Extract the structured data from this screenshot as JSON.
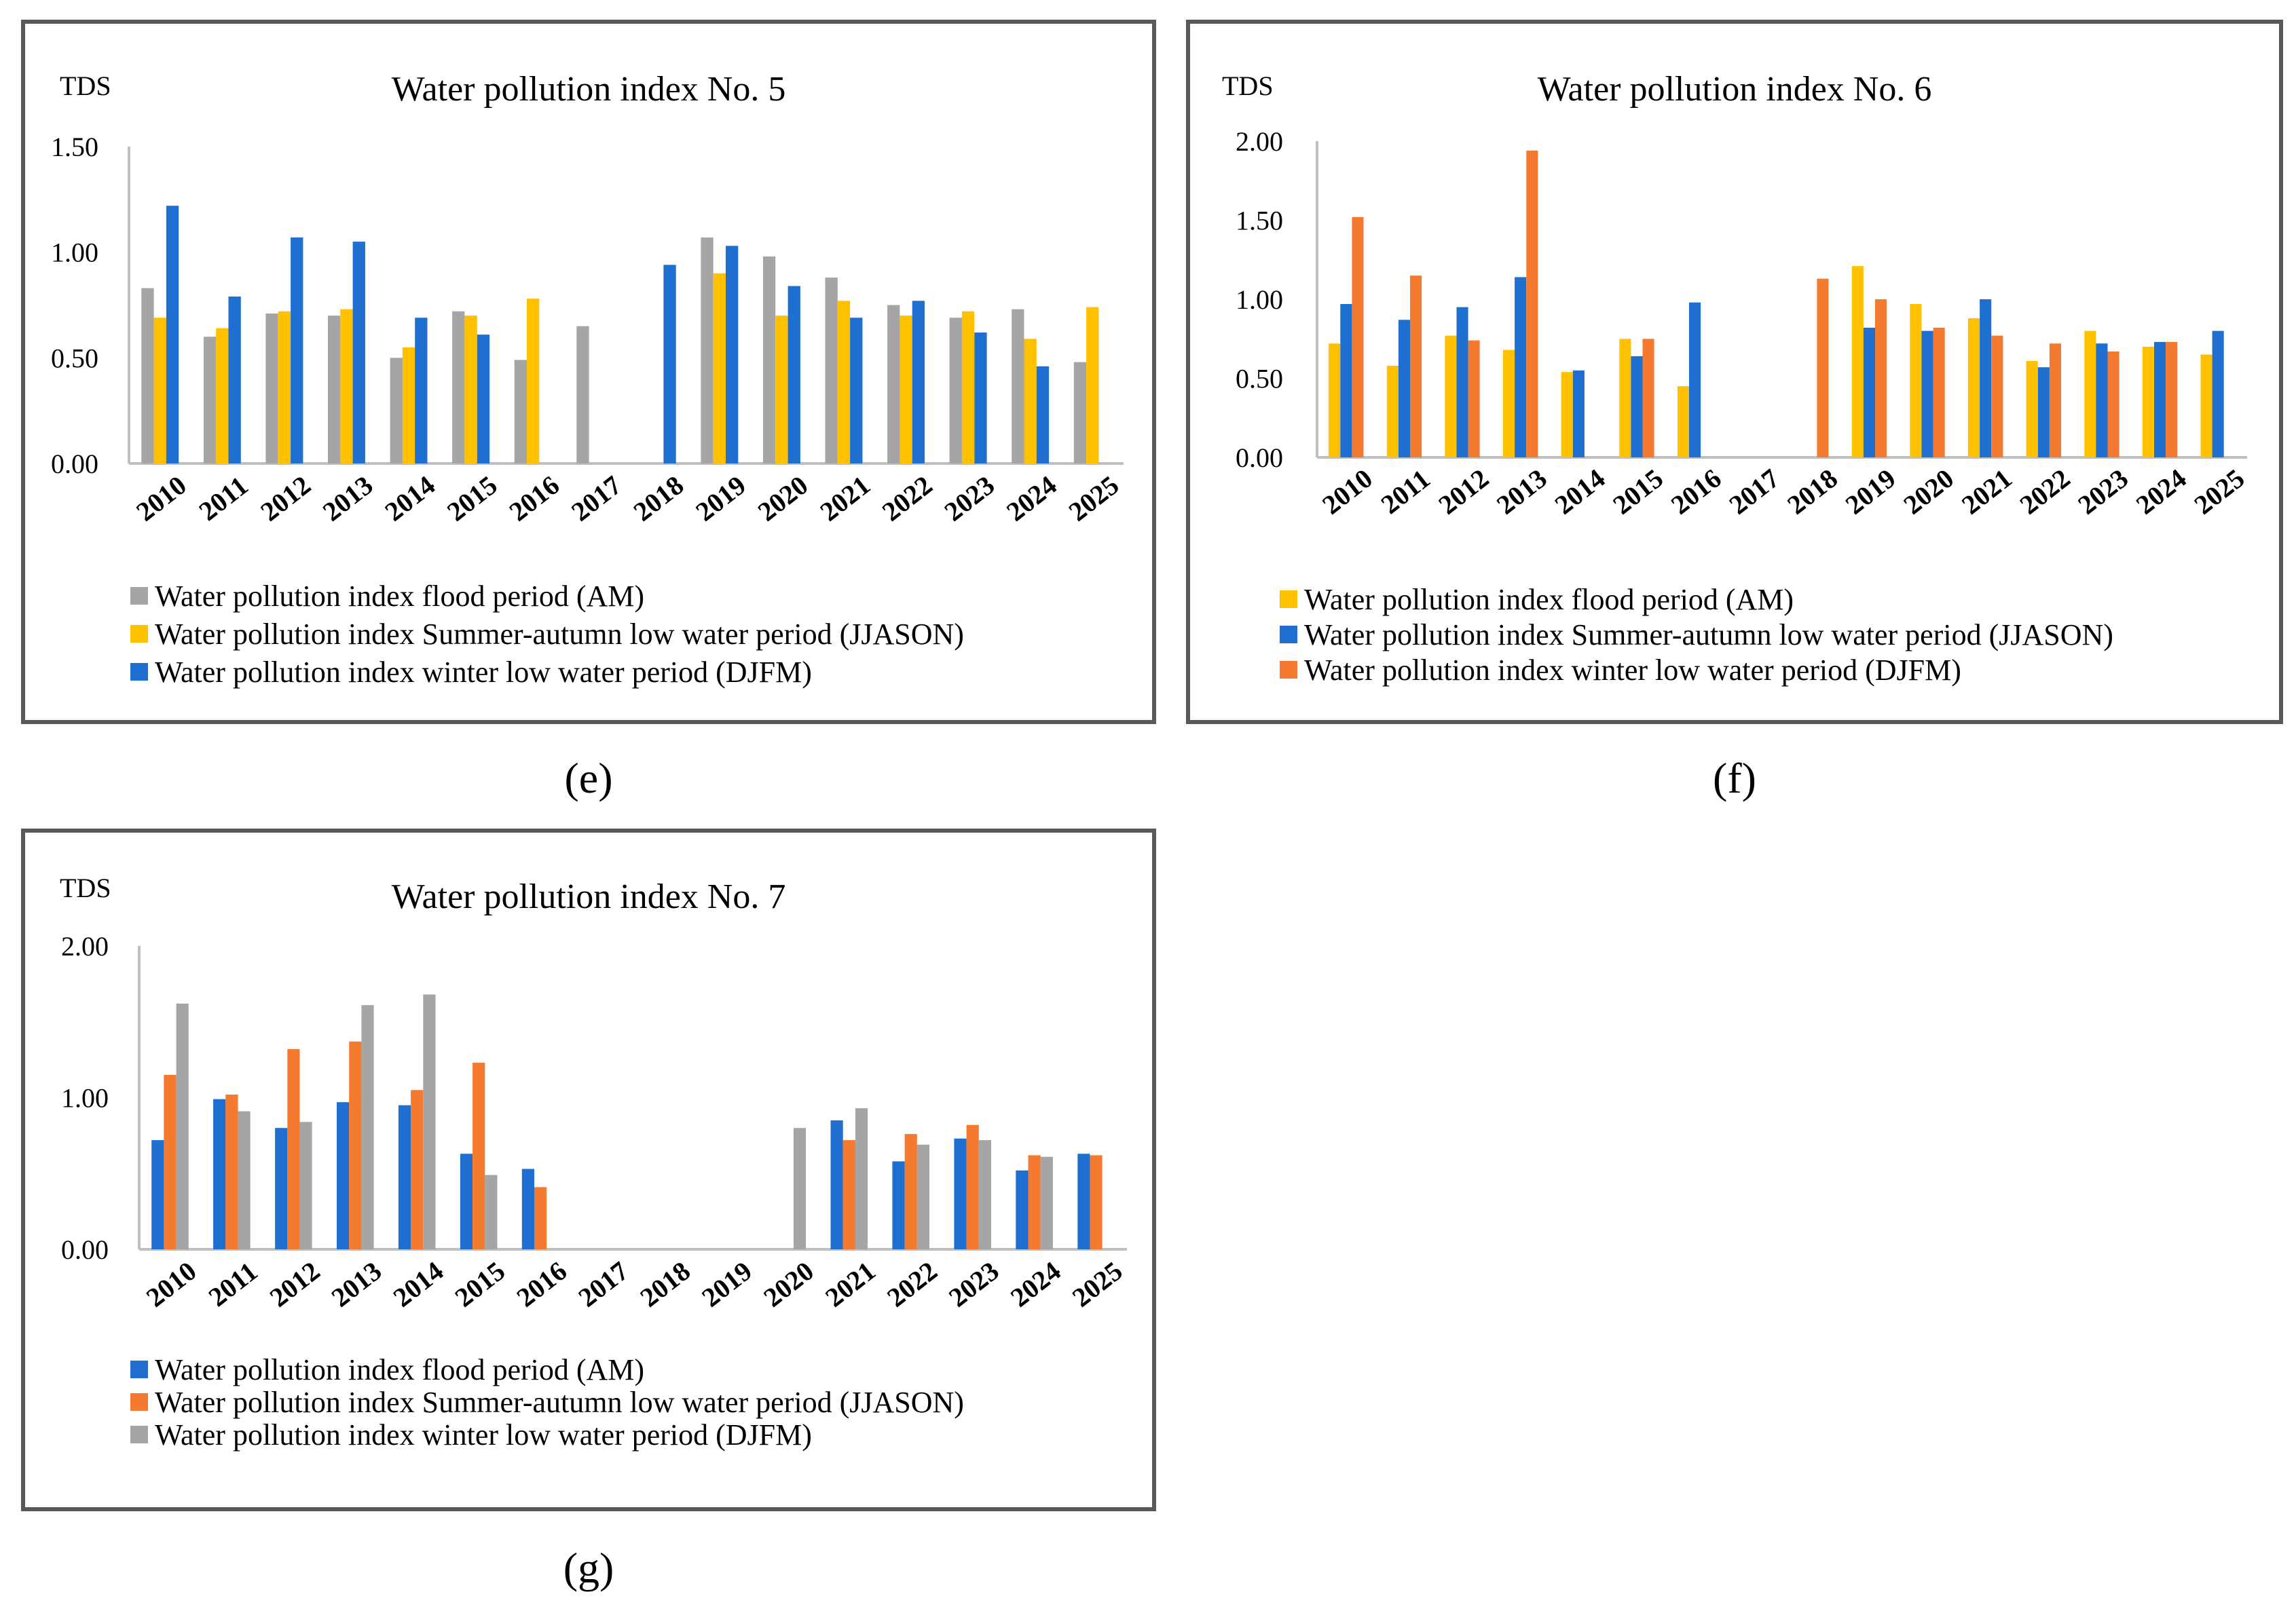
{
  "panel_labels": [
    "(e)",
    "(f)",
    "(g)"
  ],
  "chart_data": [
    {
      "type": "bar",
      "title": "Water pollution index No. 5",
      "ylabel": "TDS",
      "xlabel": "",
      "ylim": [
        0,
        1.5
      ],
      "yticks": [
        "0.00",
        "0.50",
        "1.00",
        "1.50"
      ],
      "categories": [
        "2010",
        "2011",
        "2012",
        "2013",
        "2014",
        "2015",
        "2016",
        "2017",
        "2018",
        "2019",
        "2020",
        "2021",
        "2022",
        "2023",
        "2024",
        "2025"
      ],
      "series": [
        {
          "name": "Water pollution index flood period (AM)",
          "color": "#a5a5a5",
          "values": [
            0.83,
            0.6,
            0.71,
            0.7,
            0.5,
            0.72,
            0.49,
            0.65,
            null,
            1.07,
            0.98,
            0.88,
            0.75,
            0.69,
            0.73,
            0.48
          ]
        },
        {
          "name": "Water pollution index Summer-autumn low water period (JJASON)",
          "color": "#ffc000",
          "values": [
            0.69,
            0.64,
            0.72,
            0.73,
            0.55,
            0.7,
            0.78,
            null,
            null,
            0.9,
            0.7,
            0.77,
            0.7,
            0.72,
            0.59,
            0.74
          ]
        },
        {
          "name": "Water pollution index winter low water period (DJFM)",
          "color": "#1f6fd0",
          "values": [
            1.22,
            0.79,
            1.07,
            1.05,
            0.69,
            0.61,
            null,
            null,
            0.94,
            1.03,
            0.84,
            0.69,
            0.77,
            0.62,
            0.46,
            null
          ]
        }
      ],
      "legend_position": "bottom-left"
    },
    {
      "type": "bar",
      "title": "Water pollution index No. 6",
      "ylabel": "TDS",
      "xlabel": "",
      "ylim": [
        0,
        2.0
      ],
      "yticks": [
        "0.00",
        "0.50",
        "1.00",
        "1.50",
        "2.00"
      ],
      "categories": [
        "2010",
        "2011",
        "2012",
        "2013",
        "2014",
        "2015",
        "2016",
        "2017",
        "2018",
        "2019",
        "2020",
        "2021",
        "2022",
        "2023",
        "2024",
        "2025"
      ],
      "series": [
        {
          "name": "Water pollution index flood period (AM)",
          "color": "#ffc000",
          "values": [
            0.72,
            0.58,
            0.77,
            0.68,
            0.54,
            0.75,
            0.45,
            null,
            null,
            1.21,
            0.97,
            0.88,
            0.61,
            0.8,
            0.7,
            0.65
          ]
        },
        {
          "name": "Water pollution index Summer-autumn low water period (JJASON)",
          "color": "#1f6fd0",
          "values": [
            0.97,
            0.87,
            0.95,
            1.14,
            0.55,
            0.64,
            0.98,
            null,
            null,
            0.82,
            0.8,
            1.0,
            0.57,
            0.72,
            0.73,
            0.8
          ]
        },
        {
          "name": "Water pollution index winter low water period (DJFM)",
          "color": "#f47a30",
          "values": [
            1.52,
            1.15,
            0.74,
            1.94,
            null,
            0.75,
            null,
            null,
            1.13,
            1.0,
            0.82,
            0.77,
            0.72,
            0.67,
            0.73,
            null
          ]
        }
      ],
      "legend_position": "bottom-left"
    },
    {
      "type": "bar",
      "title": "Water pollution index No. 7",
      "ylabel": "TDS",
      "xlabel": "",
      "ylim": [
        0,
        2.0
      ],
      "yticks": [
        "0.00",
        "1.00",
        "2.00"
      ],
      "categories": [
        "2010",
        "2011",
        "2012",
        "2013",
        "2014",
        "2015",
        "2016",
        "2017",
        "2018",
        "2019",
        "2020",
        "2021",
        "2022",
        "2023",
        "2024",
        "2025"
      ],
      "series": [
        {
          "name": "Water pollution index flood period (AM)",
          "color": "#1f6fd0",
          "values": [
            0.72,
            0.99,
            0.8,
            0.97,
            0.95,
            0.63,
            0.53,
            null,
            null,
            null,
            null,
            0.85,
            0.58,
            0.73,
            0.52,
            0.63
          ]
        },
        {
          "name": "Water pollution index Summer-autumn low water period (JJASON)",
          "color": "#f47a30",
          "values": [
            1.15,
            1.02,
            1.32,
            1.37,
            1.05,
            1.23,
            0.41,
            null,
            null,
            null,
            null,
            0.72,
            0.76,
            0.82,
            0.62,
            0.62
          ]
        },
        {
          "name": "Water pollution index winter low water period (DJFM)",
          "color": "#a5a5a5",
          "values": [
            1.62,
            0.91,
            0.84,
            1.61,
            1.68,
            0.49,
            null,
            null,
            null,
            null,
            0.8,
            0.93,
            0.69,
            0.72,
            0.61,
            null
          ]
        }
      ],
      "legend_position": "bottom-left"
    }
  ]
}
